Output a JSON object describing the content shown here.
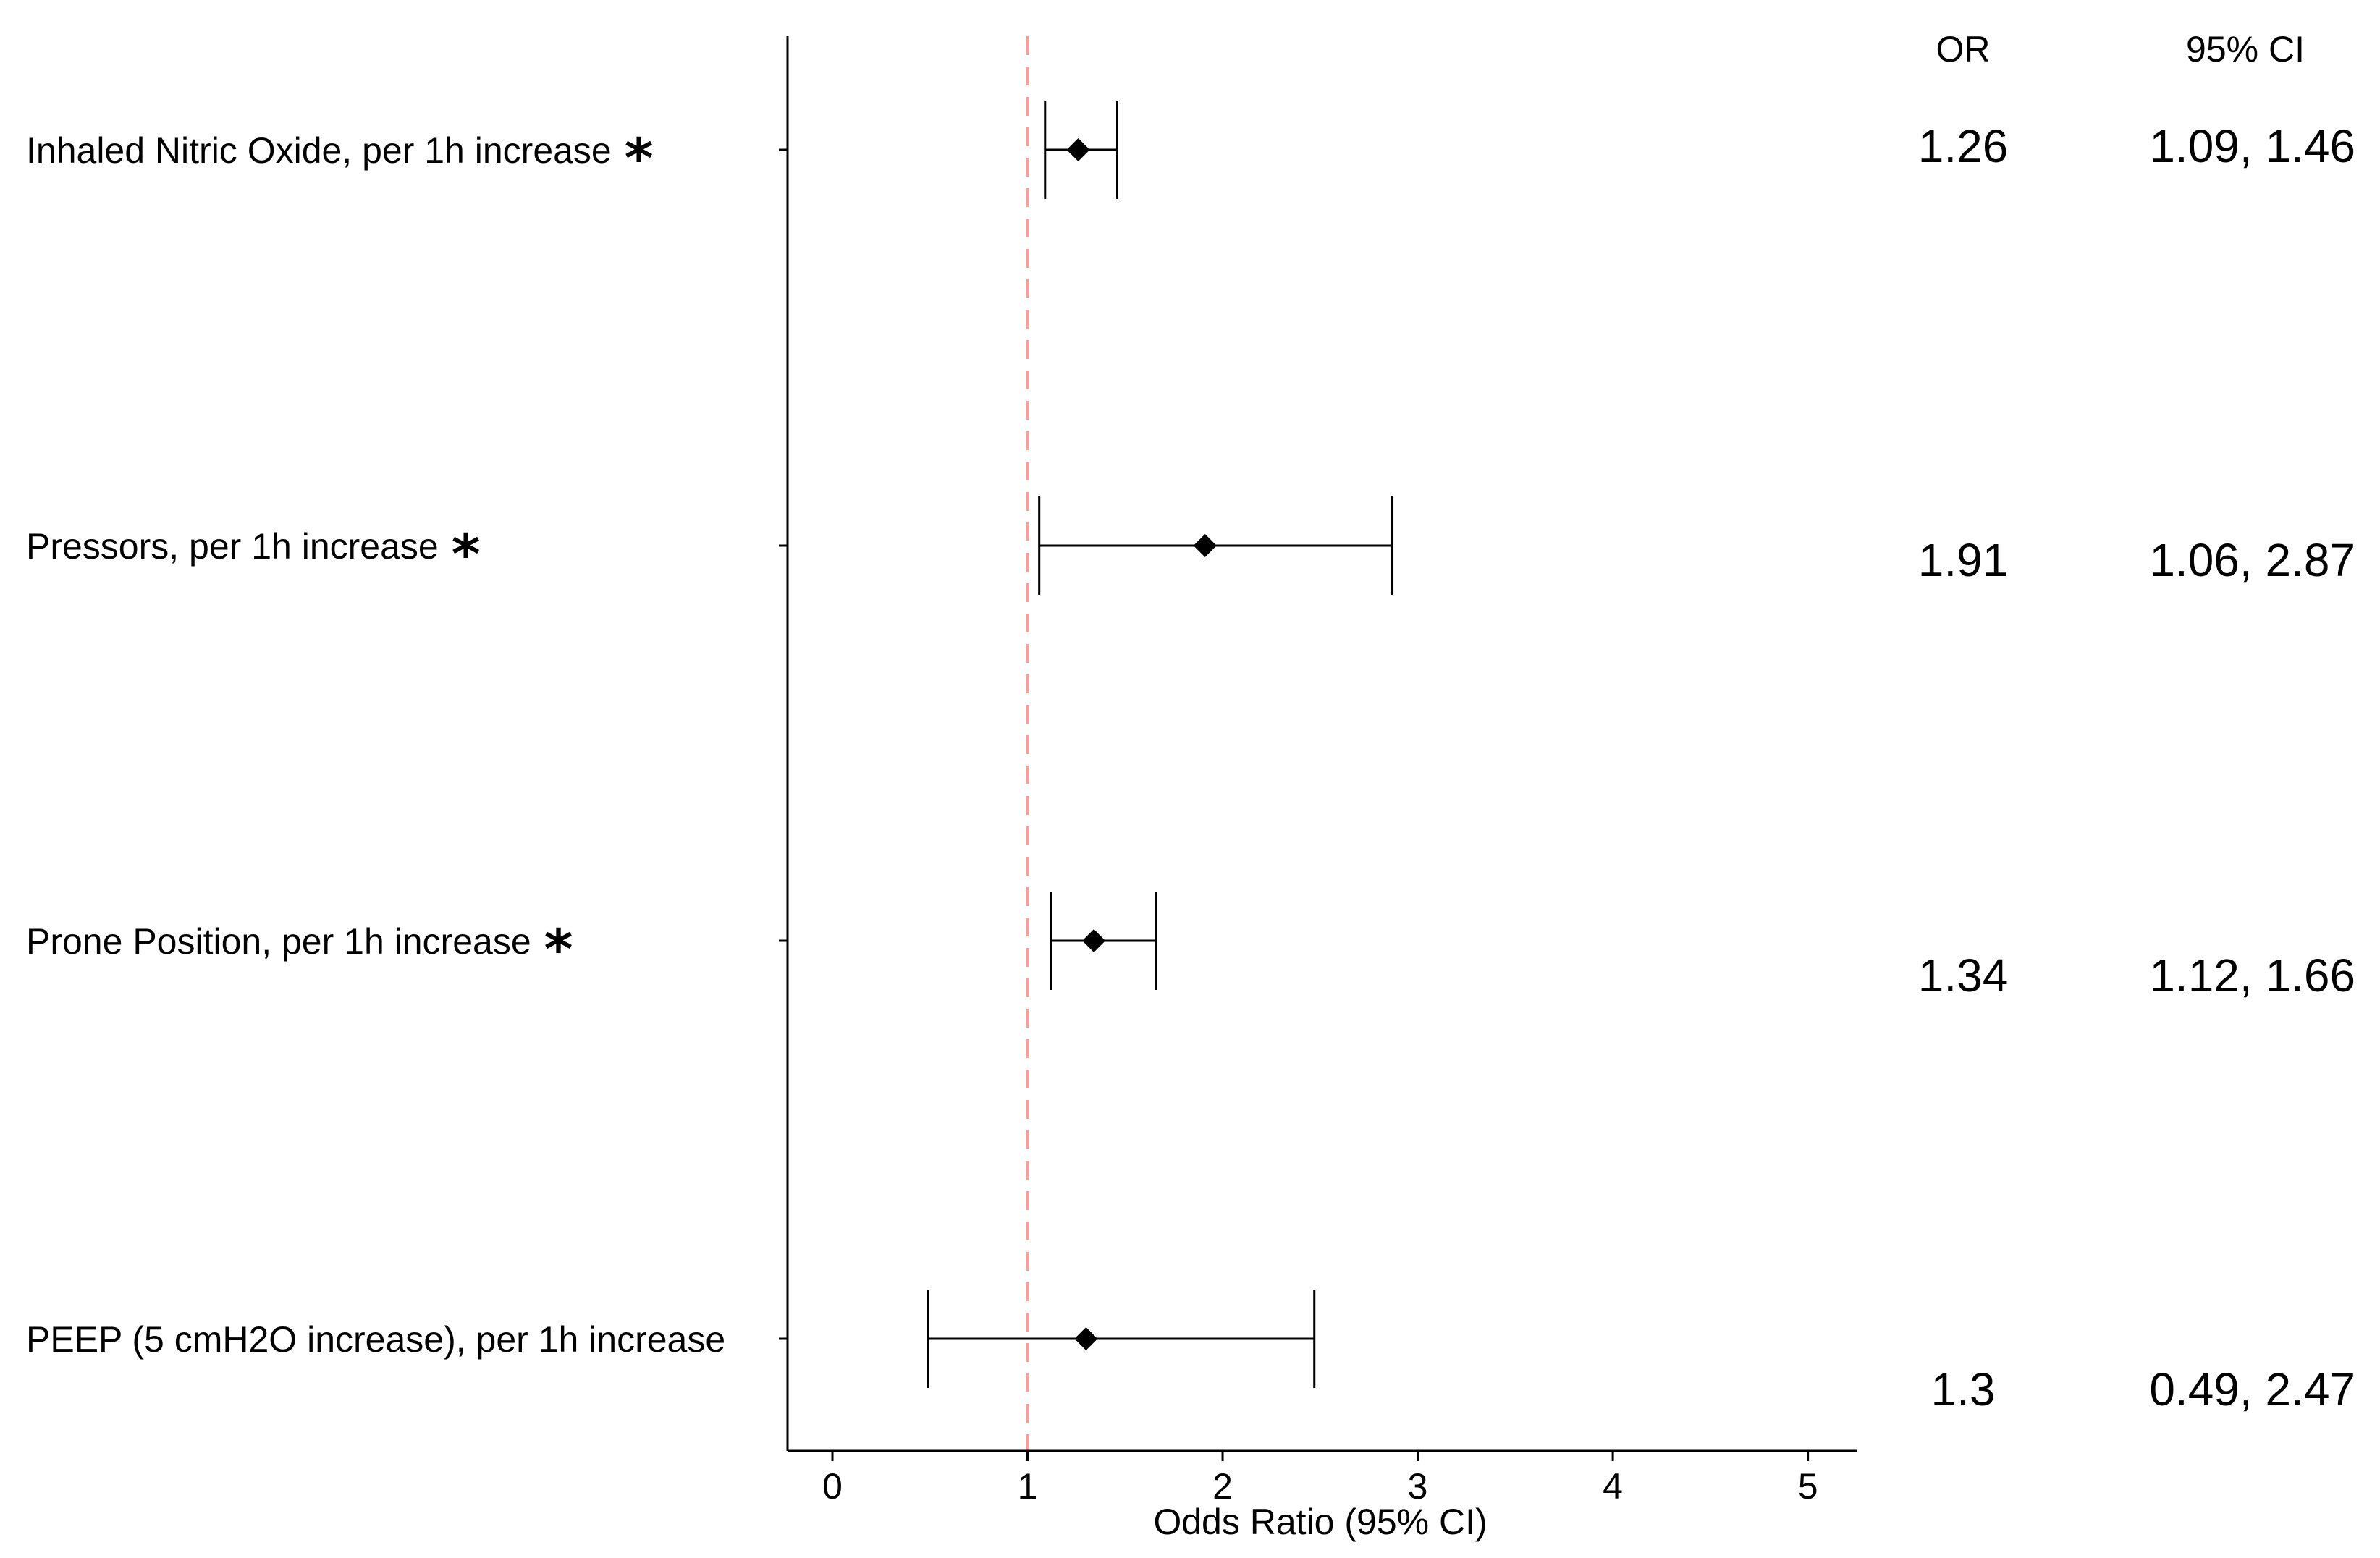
{
  "chart_data": {
    "type": "forest",
    "xlabel": "Odds Ratio (95% CI)",
    "xlim": [
      -0.23,
      5.25
    ],
    "xticks": [
      "0",
      "1",
      "2",
      "3",
      "4",
      "5"
    ],
    "reference_line": {
      "x": 1,
      "style": "dashed",
      "color": "#f4a0a0"
    },
    "columns": {
      "or_header": "OR",
      "ci_header": "95% CI"
    },
    "rows": [
      {
        "label": "Inhaled Nitric Oxide, per 1h increase",
        "significant": true,
        "or": 1.26,
        "lower": 1.09,
        "upper": 1.46,
        "or_text": "1.26",
        "ci_text": "1.09, 1.46"
      },
      {
        "label": "Pressors, per 1h increase",
        "significant": true,
        "or": 1.91,
        "lower": 1.06,
        "upper": 2.87,
        "or_text": "1.91",
        "ci_text": "1.06, 2.87"
      },
      {
        "label": "Prone Position, per 1h increase",
        "significant": true,
        "or": 1.34,
        "lower": 1.12,
        "upper": 1.66,
        "or_text": "1.34",
        "ci_text": "1.12, 1.66"
      },
      {
        "label": "PEEP (5 cmH2O increase), per 1h increase",
        "significant": false,
        "or": 1.3,
        "lower": 0.49,
        "upper": 2.47,
        "or_text": "1.3",
        "ci_text": "0.49, 2.47"
      }
    ],
    "significance_marker": "*"
  }
}
